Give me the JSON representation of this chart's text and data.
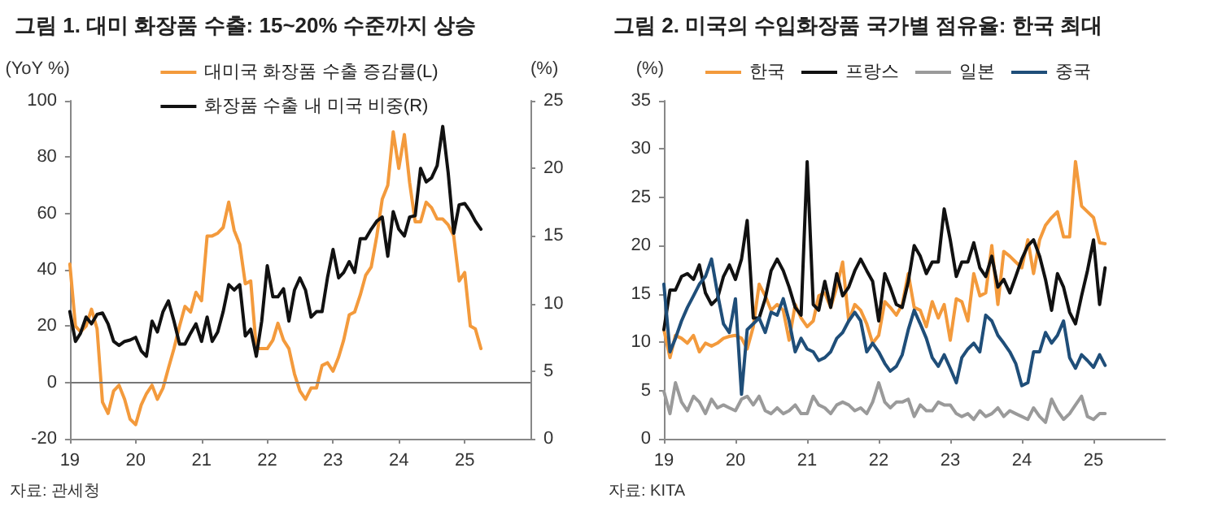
{
  "chart_data": [
    {
      "type": "line",
      "title": "그림 1. 대미 화장품 수출: 15~20% 수준까지 상승",
      "ylabel": "(YoY %)",
      "y2label": "(%)",
      "annotations": [
        "자료: 관세청"
      ],
      "legend": "top",
      "marker": "none",
      "x": [
        "2019-01",
        "2019-02",
        "2019-03",
        "2019-04",
        "2019-05",
        "2019-06",
        "2019-07",
        "2019-08",
        "2019-09",
        "2019-10",
        "2019-11",
        "2019-12",
        "2020-01",
        "2020-02",
        "2020-03",
        "2020-04",
        "2020-05",
        "2020-06",
        "2020-07",
        "2020-08",
        "2020-09",
        "2020-10",
        "2020-11",
        "2020-12",
        "2021-01",
        "2021-02",
        "2021-03",
        "2021-04",
        "2021-05",
        "2021-06",
        "2021-07",
        "2021-08",
        "2021-09",
        "2021-10",
        "2021-11",
        "2021-12",
        "2022-01",
        "2022-02",
        "2022-03",
        "2022-04",
        "2022-05",
        "2022-06",
        "2022-07",
        "2022-08",
        "2022-09",
        "2022-10",
        "2022-11",
        "2022-12",
        "2023-01",
        "2023-02",
        "2023-03",
        "2023-04",
        "2023-05",
        "2023-06",
        "2023-07",
        "2023-08",
        "2023-09",
        "2023-10",
        "2023-11",
        "2023-12",
        "2024-01",
        "2024-02",
        "2024-03",
        "2024-04",
        "2024-05",
        "2024-06",
        "2024-07",
        "2024-08",
        "2024-09",
        "2024-10",
        "2024-11",
        "2024-12",
        "2025-01",
        "2025-02",
        "2025-03",
        "2025-04"
      ],
      "xlim": [
        "2019-01",
        "2026-01"
      ],
      "xticks": [
        {
          "value": "2019-01",
          "label": "19"
        },
        {
          "value": "2020-01",
          "label": "20"
        },
        {
          "value": "2021-01",
          "label": "21"
        },
        {
          "value": "2022-01",
          "label": "22"
        },
        {
          "value": "2023-01",
          "label": "23"
        },
        {
          "value": "2024-01",
          "label": "24"
        },
        {
          "value": "2025-01",
          "label": "25"
        }
      ],
      "ylim": [
        -20,
        100
      ],
      "yticks": [
        -20,
        0,
        20,
        40,
        60,
        80,
        100
      ],
      "y2lim": [
        0,
        25
      ],
      "y2ticks": [
        0,
        5,
        10,
        15,
        20,
        25
      ],
      "ref_lines": [
        {
          "axis": "y",
          "value": 0,
          "color": "#777777"
        }
      ],
      "series": [
        {
          "name": "대미국 화장품 수출 증감률(L)",
          "color": "#f39a3c",
          "values": [
            42,
            20,
            18,
            20,
            26,
            19,
            -7,
            -11,
            -3,
            -1,
            -6,
            -13,
            -15,
            -8,
            -4,
            -1,
            -6,
            -2,
            5,
            12,
            20,
            27,
            25,
            32,
            29,
            52,
            52,
            53,
            55,
            64,
            54,
            49,
            35,
            36,
            12,
            12,
            12,
            15,
            21,
            15,
            12,
            3,
            -3,
            -6,
            -2,
            -2,
            6,
            7,
            4,
            9,
            15,
            24,
            25,
            31,
            38,
            41,
            52,
            65,
            70,
            89,
            76,
            88,
            71,
            57,
            57,
            64,
            62,
            58,
            58,
            56,
            52,
            36,
            39,
            20,
            19,
            12
          ]
        },
        {
          "name": "화장품 수출 내 미국 비중(R)",
          "color": "#111111",
          "axis": "y2",
          "values": [
            9.4,
            7.2,
            7.8,
            9.0,
            8.5,
            9.2,
            9.3,
            8.5,
            7.2,
            6.9,
            7.2,
            7.3,
            7.5,
            6.5,
            6.1,
            8.7,
            7.9,
            9.4,
            10.2,
            8.7,
            7.0,
            7.0,
            7.8,
            8.5,
            7.2,
            9.0,
            7.2,
            7.9,
            9.4,
            11.4,
            11.0,
            11.4,
            7.6,
            8.1,
            6.1,
            8.7,
            12.8,
            10.5,
            10.5,
            11.1,
            8.7,
            11.0,
            11.9,
            11.0,
            9.0,
            9.4,
            9.4,
            11.9,
            14.0,
            11.9,
            12.3,
            13.1,
            12.3,
            14.8,
            14.8,
            15.5,
            16.1,
            16.4,
            13.5,
            16.8,
            15.5,
            15.0,
            16.4,
            16.5,
            20.0,
            19.0,
            19.3,
            20.2,
            23.1,
            19.7,
            15.2,
            17.3,
            17.4,
            16.8,
            16.1,
            15.5
          ]
        }
      ]
    },
    {
      "type": "line",
      "title": "그림 2. 미국의 수입화장품 국가별 점유율: 한국 최대",
      "ylabel": "(%)",
      "annotations": [
        "자료: KITA"
      ],
      "legend": "top",
      "marker": "none",
      "x": [
        "2019-01",
        "2019-02",
        "2019-03",
        "2019-04",
        "2019-05",
        "2019-06",
        "2019-07",
        "2019-08",
        "2019-09",
        "2019-10",
        "2019-11",
        "2019-12",
        "2020-01",
        "2020-02",
        "2020-03",
        "2020-04",
        "2020-05",
        "2020-06",
        "2020-07",
        "2020-08",
        "2020-09",
        "2020-10",
        "2020-11",
        "2020-12",
        "2021-01",
        "2021-02",
        "2021-03",
        "2021-04",
        "2021-05",
        "2021-06",
        "2021-07",
        "2021-08",
        "2021-09",
        "2021-10",
        "2021-11",
        "2021-12",
        "2022-01",
        "2022-02",
        "2022-03",
        "2022-04",
        "2022-05",
        "2022-06",
        "2022-07",
        "2022-08",
        "2022-09",
        "2022-10",
        "2022-11",
        "2022-12",
        "2023-01",
        "2023-02",
        "2023-03",
        "2023-04",
        "2023-05",
        "2023-06",
        "2023-07",
        "2023-08",
        "2023-09",
        "2023-10",
        "2023-11",
        "2023-12",
        "2024-01",
        "2024-02",
        "2024-03",
        "2024-04",
        "2024-05",
        "2024-06",
        "2024-07",
        "2024-08",
        "2024-09",
        "2024-10",
        "2024-11",
        "2024-12",
        "2025-01",
        "2025-02",
        "2025-03"
      ],
      "xlim": [
        "2019-01",
        "2026-01"
      ],
      "xticks": [
        {
          "value": "2019-01",
          "label": "19"
        },
        {
          "value": "2020-01",
          "label": "20"
        },
        {
          "value": "2021-01",
          "label": "21"
        },
        {
          "value": "2022-01",
          "label": "22"
        },
        {
          "value": "2023-01",
          "label": "23"
        },
        {
          "value": "2024-01",
          "label": "24"
        },
        {
          "value": "2025-01",
          "label": "25"
        }
      ],
      "ylim": [
        0,
        35
      ],
      "yticks": [
        0,
        5,
        10,
        15,
        20,
        25,
        30,
        35
      ],
      "series": [
        {
          "name": "한국",
          "color": "#f39a3c",
          "values": [
            11.3,
            8.4,
            10.7,
            10.4,
            9.9,
            10.7,
            9.0,
            9.9,
            9.6,
            9.9,
            10.4,
            10.6,
            10.7,
            10.4,
            9.3,
            11.6,
            16.0,
            14.8,
            13.3,
            13.9,
            13.3,
            10.2,
            13.9,
            12.5,
            11.6,
            12.2,
            14.8,
            15.1,
            13.6,
            15.7,
            18.3,
            12.2,
            13.9,
            13.3,
            11.9,
            9.9,
            10.7,
            14.2,
            13.6,
            12.8,
            13.9,
            17.1,
            13.6,
            13.3,
            11.6,
            14.2,
            12.5,
            13.9,
            10.2,
            14.5,
            14.2,
            12.2,
            17.1,
            14.8,
            15.1,
            20.0,
            13.9,
            19.4,
            18.9,
            18.3,
            17.7,
            20.6,
            17.1,
            20.6,
            22.1,
            22.9,
            23.5,
            20.9,
            20.9,
            28.7,
            24.1,
            23.5,
            22.9,
            20.3,
            20.2
          ]
        },
        {
          "name": "프랑스",
          "color": "#111111",
          "values": [
            11.3,
            15.4,
            15.4,
            16.8,
            17.1,
            16.5,
            18.0,
            15.1,
            13.9,
            14.5,
            16.8,
            18.0,
            16.5,
            18.6,
            22.6,
            12.5,
            12.5,
            14.5,
            17.4,
            18.6,
            17.4,
            15.7,
            13.6,
            12.8,
            28.7,
            13.9,
            13.3,
            16.3,
            13.6,
            17.1,
            14.8,
            15.7,
            17.4,
            18.6,
            17.4,
            16.3,
            12.2,
            17.1,
            15.7,
            13.9,
            13.6,
            16.3,
            20.0,
            18.9,
            17.1,
            18.3,
            18.3,
            23.8,
            20.6,
            16.8,
            18.3,
            18.3,
            20.3,
            17.7,
            16.8,
            18.9,
            15.7,
            16.5,
            15.1,
            16.8,
            18.6,
            20.0,
            20.6,
            18.9,
            16.5,
            13.3,
            17.1,
            15.7,
            13.1,
            11.9,
            14.8,
            17.4,
            20.6,
            13.9,
            17.7
          ]
        },
        {
          "name": "일본",
          "color": "#9a9a9a",
          "values": [
            4.9,
            2.6,
            5.8,
            3.8,
            2.9,
            4.4,
            3.8,
            2.6,
            4.1,
            3.2,
            3.5,
            3.2,
            2.9,
            4.1,
            4.4,
            3.5,
            4.4,
            2.9,
            2.6,
            3.2,
            2.6,
            2.9,
            3.5,
            2.6,
            2.6,
            4.4,
            3.5,
            3.2,
            2.6,
            3.5,
            3.8,
            3.5,
            2.9,
            3.2,
            2.6,
            3.8,
            5.8,
            3.8,
            3.2,
            3.8,
            3.8,
            4.1,
            2.3,
            3.5,
            2.9,
            2.9,
            3.8,
            3.5,
            3.5,
            2.6,
            2.3,
            2.6,
            2.0,
            2.9,
            2.3,
            2.6,
            3.2,
            2.3,
            2.9,
            2.6,
            2.3,
            2.0,
            3.2,
            2.3,
            1.7,
            4.1,
            2.9,
            2.0,
            2.6,
            3.5,
            4.4,
            2.3,
            2.0,
            2.6,
            2.6
          ]
        },
        {
          "name": "중국",
          "color": "#1f4e79",
          "values": [
            16.0,
            9.0,
            10.4,
            12.2,
            13.6,
            14.8,
            16.0,
            16.8,
            18.6,
            15.1,
            11.9,
            11.0,
            14.5,
            4.6,
            11.3,
            11.9,
            12.5,
            11.0,
            13.1,
            12.8,
            14.5,
            12.2,
            9.0,
            10.4,
            9.3,
            9.0,
            8.1,
            8.4,
            9.0,
            10.4,
            11.0,
            12.2,
            13.1,
            12.2,
            9.0,
            9.9,
            9.0,
            7.8,
            7.0,
            7.5,
            8.7,
            11.3,
            13.3,
            11.9,
            10.4,
            8.4,
            7.5,
            8.7,
            7.3,
            5.8,
            8.4,
            9.3,
            9.9,
            9.0,
            12.8,
            12.2,
            10.7,
            9.9,
            9.0,
            7.8,
            5.5,
            5.8,
            9.0,
            9.0,
            11.0,
            9.9,
            10.7,
            12.2,
            8.4,
            7.3,
            8.7,
            8.1,
            7.4,
            8.7,
            7.6
          ]
        }
      ]
    }
  ]
}
